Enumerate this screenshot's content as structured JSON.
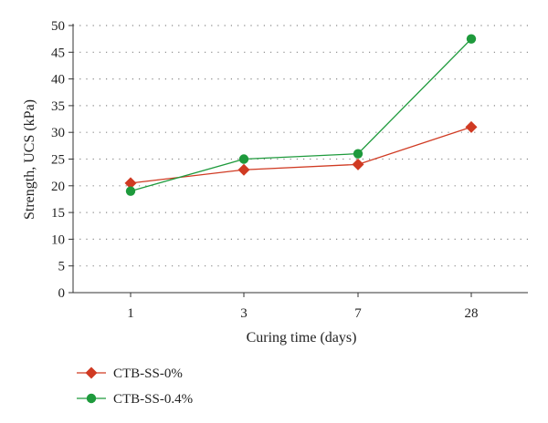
{
  "chart_data": {
    "type": "line",
    "categories": [
      "1",
      "3",
      "7",
      "28"
    ],
    "xlabel": "Curing time (days)",
    "ylabel": "Strength, UCS (kPa)",
    "ylim": [
      0,
      50
    ],
    "yticks": [
      0,
      5,
      10,
      15,
      20,
      25,
      30,
      35,
      40,
      45,
      50
    ],
    "grid": "horizontal dotted",
    "legend_position": "bottom-left",
    "series": [
      {
        "name": "CTB-SS-0%",
        "values": [
          20.5,
          23,
          24,
          31
        ],
        "color": "#d03a22",
        "marker": "diamond"
      },
      {
        "name": "CTB-SS-0.4%",
        "values": [
          19,
          25,
          26,
          47.5
        ],
        "color": "#1e9a3c",
        "marker": "circle"
      }
    ]
  }
}
